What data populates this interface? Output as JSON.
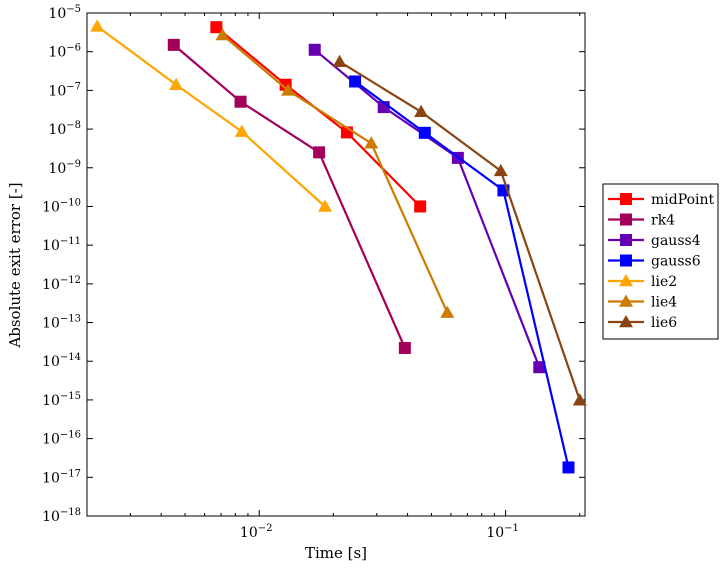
{
  "chart_data": {
    "type": "line",
    "title": "",
    "xlabel": "Time [s]",
    "ylabel": "Absolute exit error [-]",
    "xscale": "log",
    "yscale": "log",
    "xlim": [
      0.002,
      0.21
    ],
    "ylim": [
      1e-18,
      1e-05
    ],
    "x_ticks": [
      {
        "value": 0.01,
        "base": "10",
        "exp": "−2"
      },
      {
        "value": 0.1,
        "base": "10",
        "exp": "−1"
      }
    ],
    "y_ticks": [
      {
        "value": 1e-05,
        "base": "10",
        "exp": "−5"
      },
      {
        "value": 1e-06,
        "base": "10",
        "exp": "−6"
      },
      {
        "value": 1e-07,
        "base": "10",
        "exp": "−7"
      },
      {
        "value": 1e-08,
        "base": "10",
        "exp": "−8"
      },
      {
        "value": 1e-09,
        "base": "10",
        "exp": "−9"
      },
      {
        "value": 1e-10,
        "base": "10",
        "exp": "−10"
      },
      {
        "value": 1e-11,
        "base": "10",
        "exp": "−11"
      },
      {
        "value": 1e-12,
        "base": "10",
        "exp": "−12"
      },
      {
        "value": 1e-13,
        "base": "10",
        "exp": "−13"
      },
      {
        "value": 1e-14,
        "base": "10",
        "exp": "−14"
      },
      {
        "value": 1e-15,
        "base": "10",
        "exp": "−15"
      },
      {
        "value": 1e-16,
        "base": "10",
        "exp": "−16"
      },
      {
        "value": 1e-17,
        "base": "10",
        "exp": "−17"
      },
      {
        "value": 1e-18,
        "base": "10",
        "exp": "−18"
      }
    ],
    "grid": false,
    "legend_position": "right",
    "series": [
      {
        "name": "midPoint",
        "color": "#ff0000",
        "marker": "square",
        "x": [
          0.0067,
          0.0128,
          0.0227,
          0.045
        ],
        "y": [
          4.3e-06,
          1.4e-07,
          8.2e-09,
          1e-10
        ]
      },
      {
        "name": "rk4",
        "color": "#a3005c",
        "marker": "square",
        "x": [
          0.0045,
          0.0084,
          0.0175,
          0.039
        ],
        "y": [
          1.5e-06,
          5.1e-08,
          2.5e-09,
          2.2e-14
        ]
      },
      {
        "name": "gauss4",
        "color": "#6600b3",
        "marker": "square",
        "x": [
          0.0168,
          0.032,
          0.064,
          0.137
        ],
        "y": [
          1.12e-06,
          3.7e-08,
          1.8e-09,
          7e-15
        ]
      },
      {
        "name": "gauss6",
        "color": "#0000ff",
        "marker": "square",
        "x": [
          0.0245,
          0.047,
          0.098,
          0.18
        ],
        "y": [
          1.7e-07,
          8e-09,
          2.6e-10,
          1.8e-17
        ]
      },
      {
        "name": "lie2",
        "color": "#ffa500",
        "marker": "triangle",
        "x": [
          0.0022,
          0.0046,
          0.0085,
          0.0185
        ],
        "y": [
          4.5e-06,
          1.4e-07,
          8.6e-09,
          1e-10
        ]
      },
      {
        "name": "lie4",
        "color": "#cc7a00",
        "marker": "triangle",
        "x": [
          0.0071,
          0.0131,
          0.0285,
          0.058
        ],
        "y": [
          2.7e-06,
          1e-07,
          4.3e-09,
          1.8e-13
        ]
      },
      {
        "name": "lie6",
        "color": "#8b4513",
        "marker": "triangle",
        "x": [
          0.0212,
          0.0454,
          0.0956,
          0.2
        ],
        "y": [
          5.5e-07,
          2.8e-08,
          8.3e-10,
          9.8e-16
        ]
      }
    ]
  }
}
